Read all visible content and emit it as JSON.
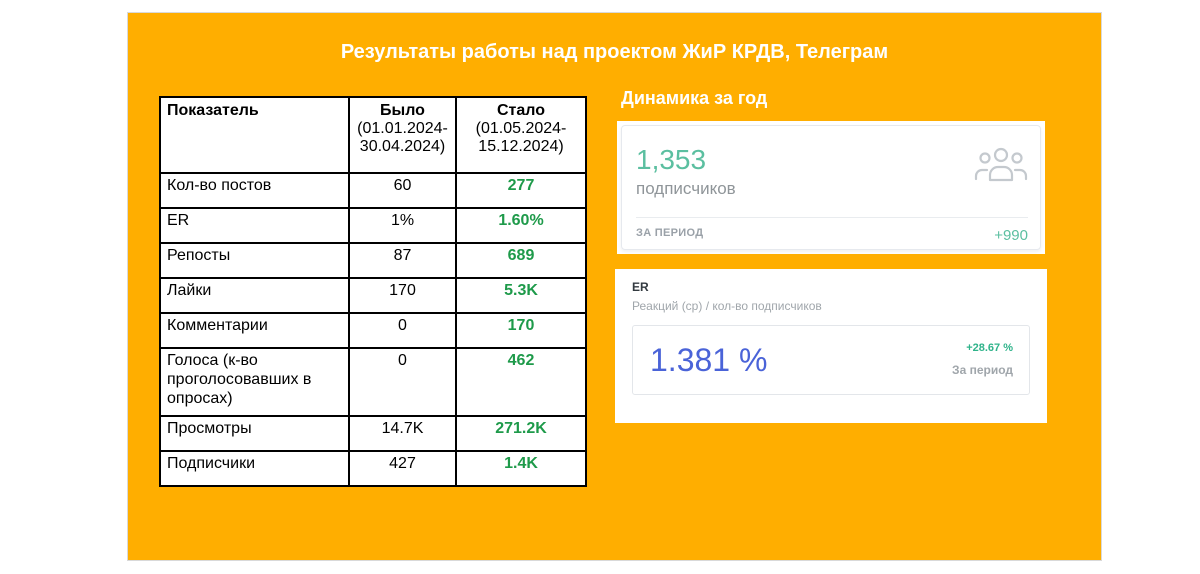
{
  "title": "Результаты работы над проектом ЖиР КРДВ,  Телеграм",
  "table": {
    "headers": {
      "metric": "Показатель",
      "before": "Было",
      "before_period": "(01.01.2024-30.04.2024)",
      "after": "Стало",
      "after_period": "(01.05.2024-15.12.2024)"
    },
    "rows": [
      {
        "name": "Кол-во постов",
        "before": "60",
        "after": "277"
      },
      {
        "name": "ER",
        "before": "1%",
        "after": "1.60%"
      },
      {
        "name": "Репосты",
        "before": "87",
        "after": "689"
      },
      {
        "name": "Лайки",
        "before": "170",
        "after": "5.3K"
      },
      {
        "name": "Комментарии",
        "before": "0",
        "after": "170"
      },
      {
        "name": "Голоса (к-во проголосовавших в опросах)",
        "before": "0",
        "after": "462"
      },
      {
        "name": "Просмотры",
        "before": "14.7K",
        "after": "271.2K"
      },
      {
        "name": "Подписчики",
        "before": "427",
        "after": "1.4K"
      }
    ]
  },
  "dynamics": {
    "title": "Динамика за год",
    "subscribers": {
      "value": "1,353",
      "label": "подписчиков",
      "period_label": "ЗА ПЕРИОД",
      "period_value": "+990",
      "icon": "users-icon"
    },
    "er": {
      "title": "ER",
      "subtitle": "Реакций (ср) / кол-во подписчиков",
      "value": "1.381 %",
      "change": "+28.67 %",
      "period_label": "За период"
    }
  },
  "colors": {
    "background": "#ffae00",
    "growth_text": "#1e9a4a",
    "teal": "#5bbfa0",
    "er_blue": "#4a63d8"
  }
}
